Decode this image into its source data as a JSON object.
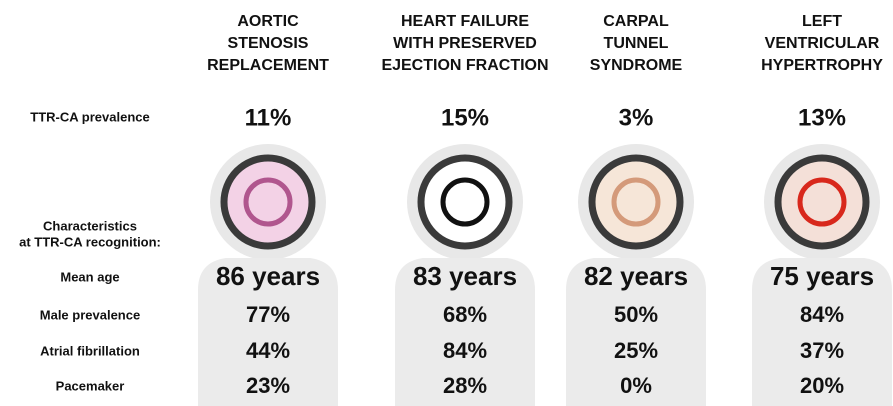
{
  "row_labels": {
    "prevalence": "TTR-CA prevalence",
    "characteristics": [
      "Characteristics",
      "at TTR-CA recognition:"
    ],
    "mean_age": "Mean age",
    "male": "Male prevalence",
    "afib": "Atrial fibrillation",
    "pacemaker": "Pacemaker"
  },
  "columns": [
    {
      "title": [
        "AORTIC",
        "STENOSIS",
        "REPLACEMENT"
      ],
      "prevalence": "11%",
      "mean_age": "86 years",
      "male": "77%",
      "afib": "44%",
      "pacemaker": "23%"
    },
    {
      "title": [
        "HEART FAILURE",
        "WITH PRESERVED",
        "EJECTION FRACTION"
      ],
      "prevalence": "15%",
      "mean_age": "83 years",
      "male": "68%",
      "afib": "84%",
      "pacemaker": "28%"
    },
    {
      "title": [
        "CARPAL",
        "TUNNEL",
        "SYNDROME"
      ],
      "prevalence": "3%",
      "mean_age": "82 years",
      "male": "50%",
      "afib": "25%",
      "pacemaker": "0%"
    },
    {
      "title": [
        "LEFT",
        "VENTRICULAR",
        "HYPERTROPHY"
      ],
      "prevalence": "13%",
      "mean_age": "75 years",
      "male": "84%",
      "afib": "37%",
      "pacemaker": "20%"
    }
  ]
}
